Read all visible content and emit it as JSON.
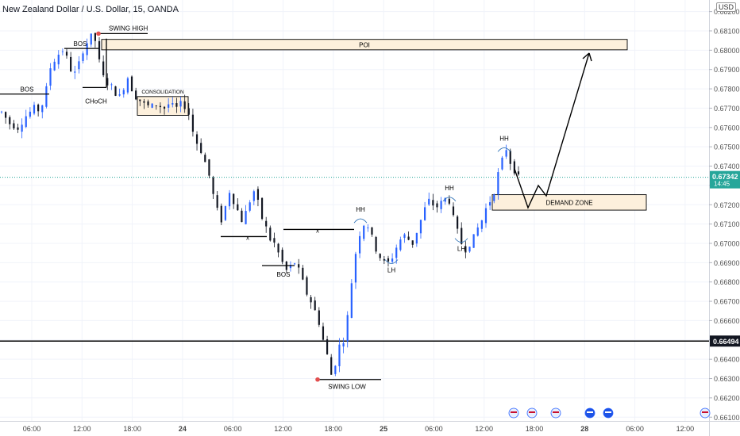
{
  "title": "New Zealand Dollar / U.S. Dollar, 15, OANDA",
  "currency_badge": "USD",
  "colors": {
    "bull": "#2962ff",
    "bear": "#131722",
    "price_tag": "#26a69a",
    "zone_fill": "#fdf0dc",
    "swing_dot": "#e34f4f"
  },
  "chart_data": {
    "type": "candlestick",
    "symbol": "NZDUSD",
    "timeframe": "15",
    "y_ticks": [
      "0.68200",
      "0.68100",
      "0.68000",
      "0.67900",
      "0.67800",
      "0.67700",
      "0.67600",
      "0.67500",
      "0.67400",
      "0.67300",
      "0.67200",
      "0.67100",
      "0.67000",
      "0.66900",
      "0.66800",
      "0.66700",
      "0.66600",
      "0.66500",
      "0.66400",
      "0.66300",
      "0.66200",
      "0.66100"
    ],
    "ylim": [
      0.6606,
      0.6826
    ],
    "x_ticks": [
      "06:00",
      "12:00",
      "18:00",
      "24",
      "06:00",
      "12:00",
      "18:00",
      "25",
      "06:00",
      "12:00",
      "18:00",
      "28",
      "06:00",
      "12:00"
    ],
    "current_price": {
      "value": "0.67342",
      "countdown": "14:45"
    },
    "horizontal_level": {
      "value": "0.66494"
    },
    "zones": [
      {
        "label": "POI",
        "top": 0.68056,
        "bottom": 0.68002
      },
      {
        "label": "DEMAND ZONE",
        "top": 0.67252,
        "bottom": 0.67172
      },
      {
        "label": "CONSOLIDATION",
        "top": 0.6776,
        "bottom": 0.67663
      }
    ],
    "annotations": [
      {
        "label": "SWING HIGH",
        "price": 0.68086
      },
      {
        "label": "SWING LOW",
        "price": 0.66295
      },
      {
        "label": "BOS",
        "price": 0.67773
      },
      {
        "label": "BOS",
        "price": 0.68009
      },
      {
        "label": "BOS",
        "price": 0.66885
      },
      {
        "label": "CHoCH",
        "price": 0.67807
      },
      {
        "label": "HH",
        "price": 0.67172
      },
      {
        "label": "HH",
        "price": 0.67284
      },
      {
        "label": "HH",
        "price": 0.6754
      },
      {
        "label": "LH",
        "price": 0.66842
      },
      {
        "label": "LH",
        "price": 0.66952
      },
      {
        "label": "x",
        "price": 0.67035
      },
      {
        "label": "x",
        "price": 0.67072
      }
    ],
    "price_path": [
      0.6768,
      0.6765,
      0.6762,
      0.6761,
      0.676,
      0.6763,
      0.6766,
      0.6768,
      0.677,
      0.6769,
      0.6772,
      0.678,
      0.6791,
      0.6795,
      0.6798,
      0.68,
      0.6796,
      0.679,
      0.6788,
      0.6793,
      0.68,
      0.6804,
      0.6807,
      0.6805,
      0.6794,
      0.6786,
      0.6783,
      0.6781,
      0.6778,
      0.6776,
      0.6781,
      0.6786,
      0.678,
      0.6776,
      0.6774,
      0.6772,
      0.6771,
      0.6771,
      0.6772,
      0.6771,
      0.677,
      0.6772,
      0.6771,
      0.677,
      0.6772,
      0.6771,
      0.6767,
      0.6758,
      0.6752,
      0.6748,
      0.6742,
      0.6735,
      0.6725,
      0.6717,
      0.6712,
      0.6719,
      0.6727,
      0.6722,
      0.6717,
      0.6712,
      0.6716,
      0.6722,
      0.6727,
      0.6721,
      0.6713,
      0.6708,
      0.6702,
      0.67,
      0.6695,
      0.669,
      0.6686,
      0.6688,
      0.669,
      0.6686,
      0.668,
      0.6674,
      0.667,
      0.6665,
      0.6659,
      0.665,
      0.6642,
      0.6632,
      0.6638,
      0.6647,
      0.665,
      0.6662,
      0.668,
      0.6695,
      0.6705,
      0.671,
      0.6709,
      0.6703,
      0.6697,
      0.6693,
      0.669,
      0.669,
      0.6693,
      0.6698,
      0.6702,
      0.6704,
      0.6702,
      0.67,
      0.6706,
      0.6712,
      0.6718,
      0.6722,
      0.672,
      0.6719,
      0.6721,
      0.6723,
      0.6722,
      0.6713,
      0.6706,
      0.67,
      0.6697,
      0.67,
      0.6703,
      0.6708,
      0.6712,
      0.6718,
      0.6722,
      0.6727,
      0.6736,
      0.6743,
      0.6749,
      0.6742,
      0.6738,
      0.6734
    ]
  }
}
